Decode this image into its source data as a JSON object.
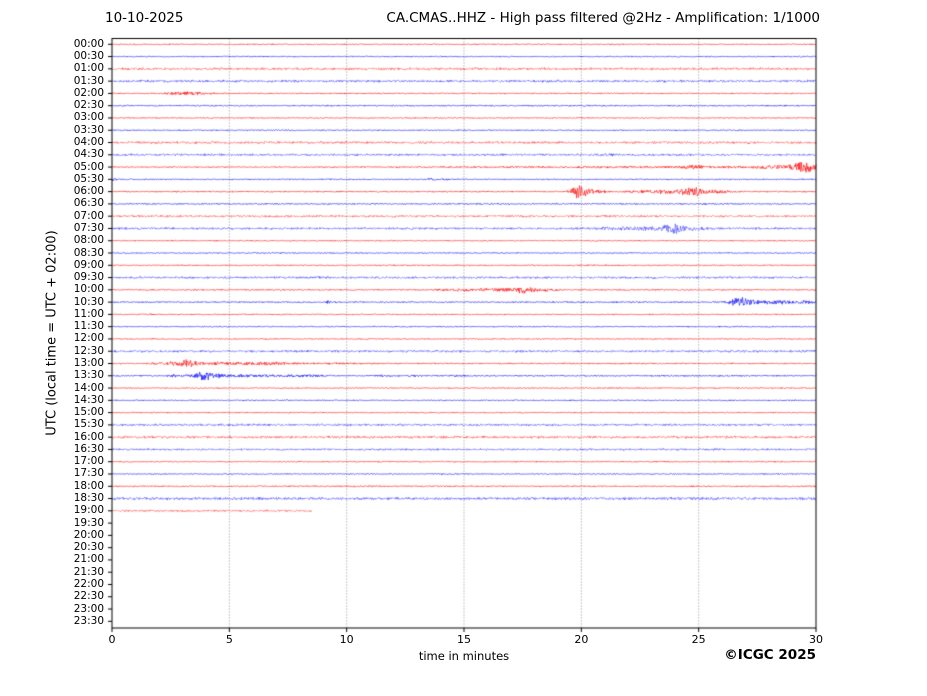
{
  "header": {
    "date_label": "10-10-2025",
    "title": "CA.CMAS..HHZ - High pass filtered @2Hz - Amplification: 1/1000"
  },
  "footer": {
    "copyright": "©ICGC 2025"
  },
  "chart_data": {
    "type": "line",
    "subtype": "helicorder-seismogram",
    "title": "CA.CMAS..HHZ - High pass filtered @2Hz - Amplification: 1/1000",
    "date_label": "10-10-2025",
    "xlabel": "time in minutes",
    "ylabel": "UTC (local time = UTC + 02:00)",
    "xlim": [
      0,
      30
    ],
    "x_ticks": [
      0,
      5,
      10,
      15,
      20,
      25,
      30
    ],
    "grid_x_minutes": [
      5,
      10,
      15,
      20,
      25
    ],
    "grid_style": "dotted-vertical",
    "minutes_per_row": 30,
    "trace_colors": {
      "red": "#ff0000",
      "blue": "#0000ff"
    },
    "frame_color": "#000000",
    "rows": [
      {
        "label": "00:00",
        "color": "red",
        "noise": 0.5,
        "light": false,
        "end": 30,
        "events": []
      },
      {
        "label": "00:30",
        "color": "blue",
        "noise": 0.5,
        "light": false,
        "end": 30,
        "events": []
      },
      {
        "label": "01:00",
        "color": "red",
        "noise": 1.1,
        "light": true,
        "end": 30,
        "events": []
      },
      {
        "label": "01:30",
        "color": "blue",
        "noise": 1.1,
        "light": true,
        "end": 30,
        "events": []
      },
      {
        "label": "02:00",
        "color": "red",
        "noise": 0.55,
        "light": false,
        "end": 30,
        "events": [
          [
            3.0,
            0.45,
            1.3
          ],
          [
            3.7,
            0.5,
            0.8
          ]
        ]
      },
      {
        "label": "02:30",
        "color": "blue",
        "noise": 0.6,
        "light": false,
        "end": 30,
        "events": []
      },
      {
        "label": "03:00",
        "color": "red",
        "noise": 0.5,
        "light": false,
        "end": 30,
        "events": []
      },
      {
        "label": "03:30",
        "color": "blue",
        "noise": 0.5,
        "light": false,
        "end": 30,
        "events": []
      },
      {
        "label": "04:00",
        "color": "red",
        "noise": 1.1,
        "light": true,
        "end": 30,
        "events": []
      },
      {
        "label": "04:30",
        "color": "blue",
        "noise": 1.0,
        "light": true,
        "end": 30,
        "events": [
          [
            21.2,
            0.12,
            1.1
          ]
        ]
      },
      {
        "label": "05:00",
        "color": "red",
        "noise": 0.55,
        "light": false,
        "end": 30,
        "events": [
          [
            16,
            2.5,
            0.35
          ],
          [
            20.5,
            1.2,
            0.5
          ],
          [
            23,
            1.2,
            0.6
          ],
          [
            24.7,
            0.35,
            1.8
          ],
          [
            25.2,
            0.25,
            1.2
          ],
          [
            26.3,
            0.25,
            1.0
          ],
          [
            27.7,
            0.45,
            1.2
          ],
          [
            28.5,
            0.4,
            1.5
          ],
          [
            29.0,
            0.3,
            1.6
          ],
          [
            29.55,
            0.3,
            7.0
          ]
        ]
      },
      {
        "label": "05:30",
        "color": "blue",
        "noise": 0.5,
        "light": false,
        "end": 30,
        "events": [
          [
            0.07,
            0.1,
            1.8
          ],
          [
            13.6,
            0.12,
            1.3
          ],
          [
            14.2,
            0.1,
            0.7
          ]
        ]
      },
      {
        "label": "06:00",
        "color": "red",
        "noise": 0.6,
        "light": false,
        "end": 30,
        "events": [
          [
            19.9,
            0.22,
            6.5
          ],
          [
            20.35,
            0.3,
            1.8
          ],
          [
            20.8,
            0.25,
            1.0
          ],
          [
            22.4,
            0.35,
            1.0
          ],
          [
            23.3,
            0.5,
            1.3
          ],
          [
            24.0,
            0.45,
            1.5
          ],
          [
            24.7,
            0.3,
            4.5
          ],
          [
            25.35,
            0.4,
            1.6
          ],
          [
            26.0,
            0.35,
            1.0
          ]
        ]
      },
      {
        "label": "06:30",
        "color": "blue",
        "noise": 0.6,
        "light": false,
        "end": 30,
        "events": []
      },
      {
        "label": "07:00",
        "color": "red",
        "noise": 1.0,
        "light": true,
        "end": 30,
        "events": []
      },
      {
        "label": "07:30",
        "color": "blue",
        "noise": 1.0,
        "light": true,
        "end": 30,
        "events": [
          [
            21.3,
            0.4,
            1.0
          ],
          [
            22.2,
            0.4,
            1.2
          ],
          [
            23.1,
            0.4,
            1.4
          ],
          [
            23.85,
            0.22,
            5.0
          ],
          [
            24.35,
            0.4,
            1.6
          ],
          [
            25.0,
            0.3,
            0.9
          ]
        ]
      },
      {
        "label": "08:00",
        "color": "red",
        "noise": 0.5,
        "light": false,
        "end": 30,
        "events": []
      },
      {
        "label": "08:30",
        "color": "blue",
        "noise": 0.5,
        "light": false,
        "end": 30,
        "events": []
      },
      {
        "label": "09:00",
        "color": "red",
        "noise": 0.55,
        "light": false,
        "end": 30,
        "events": []
      },
      {
        "label": "09:30",
        "color": "blue",
        "noise": 1.0,
        "light": true,
        "end": 30,
        "events": []
      },
      {
        "label": "10:00",
        "color": "red",
        "noise": 0.6,
        "light": false,
        "end": 30,
        "events": [
          [
            14.2,
            0.3,
            1.0
          ],
          [
            15.0,
            0.3,
            1.0
          ],
          [
            15.8,
            0.35,
            1.2
          ],
          [
            16.6,
            0.4,
            1.4
          ],
          [
            17.45,
            0.25,
            3.6
          ],
          [
            17.95,
            0.3,
            1.3
          ],
          [
            18.5,
            0.3,
            0.8
          ]
        ]
      },
      {
        "label": "10:30",
        "color": "blue",
        "noise": 0.6,
        "light": false,
        "end": 30,
        "events": [
          [
            9.3,
            0.15,
            1.6
          ],
          [
            26.7,
            0.3,
            4.6
          ],
          [
            27.4,
            0.5,
            1.5
          ],
          [
            28.3,
            0.5,
            1.2
          ],
          [
            29.2,
            0.5,
            1.3
          ],
          [
            29.8,
            0.25,
            1.0
          ]
        ]
      },
      {
        "label": "11:00",
        "color": "red",
        "noise": 0.5,
        "light": false,
        "end": 30,
        "events": [
          [
            1.6,
            0.1,
            0.8
          ]
        ]
      },
      {
        "label": "11:30",
        "color": "blue",
        "noise": 0.5,
        "light": false,
        "end": 30,
        "events": []
      },
      {
        "label": "12:00",
        "color": "red",
        "noise": 0.5,
        "light": false,
        "end": 30,
        "events": []
      },
      {
        "label": "12:30",
        "color": "blue",
        "noise": 1.0,
        "light": true,
        "end": 30,
        "events": []
      },
      {
        "label": "13:00",
        "color": "red",
        "noise": 0.6,
        "light": false,
        "end": 30,
        "events": [
          [
            1.9,
            0.2,
            1.0
          ],
          [
            2.5,
            0.2,
            1.3
          ],
          [
            3.1,
            0.22,
            4.2
          ],
          [
            3.55,
            0.2,
            2.2
          ],
          [
            4.4,
            0.4,
            1.2
          ],
          [
            5.4,
            0.5,
            1.0
          ],
          [
            6.4,
            0.5,
            1.0
          ],
          [
            7.3,
            0.4,
            0.8
          ],
          [
            9.3,
            1.2,
            0.4
          ]
        ]
      },
      {
        "label": "13:30",
        "color": "blue",
        "noise": 0.6,
        "light": false,
        "end": 30,
        "events": [
          [
            2.7,
            0.25,
            1.0
          ],
          [
            3.4,
            0.25,
            1.2
          ],
          [
            3.95,
            0.22,
            5.2
          ],
          [
            4.45,
            0.25,
            2.0
          ],
          [
            5.3,
            0.5,
            1.0
          ],
          [
            6.4,
            0.5,
            0.8
          ],
          [
            7.6,
            0.6,
            0.8
          ],
          [
            8.7,
            0.4,
            0.7
          ],
          [
            11.4,
            0.2,
            0.6
          ],
          [
            13.0,
            0.2,
            0.6
          ],
          [
            14.6,
            0.2,
            0.6
          ]
        ]
      },
      {
        "label": "14:00",
        "color": "red",
        "noise": 0.5,
        "light": false,
        "end": 30,
        "events": []
      },
      {
        "label": "14:30",
        "color": "blue",
        "noise": 0.5,
        "light": false,
        "end": 30,
        "events": []
      },
      {
        "label": "15:00",
        "color": "red",
        "noise": 0.5,
        "light": false,
        "end": 30,
        "events": []
      },
      {
        "label": "15:30",
        "color": "blue",
        "noise": 1.0,
        "light": true,
        "end": 30,
        "events": []
      },
      {
        "label": "16:00",
        "color": "red",
        "noise": 1.1,
        "light": true,
        "end": 30,
        "events": []
      },
      {
        "label": "16:30",
        "color": "blue",
        "noise": 0.9,
        "light": true,
        "end": 30,
        "events": []
      },
      {
        "label": "17:00",
        "color": "red",
        "noise": 0.5,
        "light": false,
        "end": 30,
        "events": []
      },
      {
        "label": "17:30",
        "color": "blue",
        "noise": 0.5,
        "light": false,
        "end": 30,
        "events": []
      },
      {
        "label": "18:00",
        "color": "red",
        "noise": 0.6,
        "light": false,
        "end": 30,
        "events": []
      },
      {
        "label": "18:30",
        "color": "blue",
        "noise": 1.2,
        "light": true,
        "end": 30,
        "events": []
      },
      {
        "label": "19:00",
        "color": "red",
        "noise": 0.9,
        "light": true,
        "end": 8.5,
        "events": []
      },
      {
        "label": "19:30",
        "color": "blue",
        "noise": 0,
        "light": false,
        "end": 0,
        "events": []
      },
      {
        "label": "20:00",
        "color": "red",
        "noise": 0,
        "light": false,
        "end": 0,
        "events": []
      },
      {
        "label": "20:30",
        "color": "blue",
        "noise": 0,
        "light": false,
        "end": 0,
        "events": []
      },
      {
        "label": "21:00",
        "color": "red",
        "noise": 0,
        "light": false,
        "end": 0,
        "events": []
      },
      {
        "label": "21:30",
        "color": "blue",
        "noise": 0,
        "light": false,
        "end": 0,
        "events": []
      },
      {
        "label": "22:00",
        "color": "red",
        "noise": 0,
        "light": false,
        "end": 0,
        "events": []
      },
      {
        "label": "22:30",
        "color": "blue",
        "noise": 0,
        "light": false,
        "end": 0,
        "events": []
      },
      {
        "label": "23:00",
        "color": "red",
        "noise": 0,
        "light": false,
        "end": 0,
        "events": []
      },
      {
        "label": "23:30",
        "color": "blue",
        "noise": 0,
        "light": false,
        "end": 0,
        "events": []
      }
    ]
  }
}
